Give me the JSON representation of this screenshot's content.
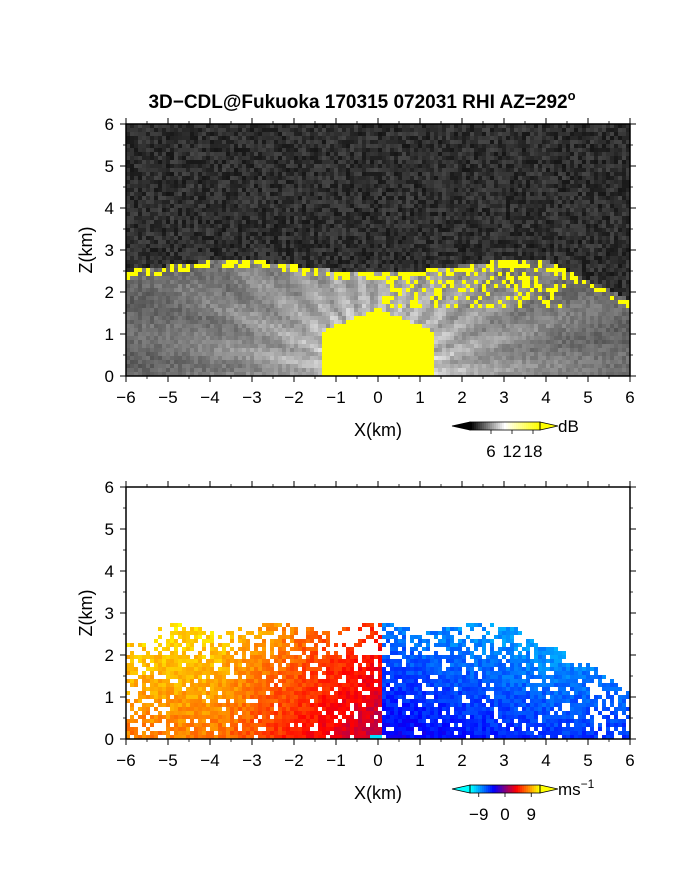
{
  "figure": {
    "title": "3D−CDL@Fukuoka 170315 072031 RHI AZ=292",
    "title_sup": "o"
  },
  "chart_data": [
    {
      "type": "heatmap",
      "variable": "backscatter intensity",
      "xlabel": "X(km)",
      "ylabel": "Z(km)",
      "xlim": [
        -6,
        6
      ],
      "ylim": [
        0,
        6
      ],
      "xticks": [
        -6,
        -5,
        -4,
        -3,
        -2,
        -1,
        0,
        1,
        2,
        3,
        4,
        5,
        6
      ],
      "yticks": [
        0,
        1,
        2,
        3,
        4,
        5,
        6
      ],
      "colorbar": {
        "unit": "dB",
        "ticks": [
          6,
          12,
          18
        ],
        "range": [
          0,
          20
        ],
        "extend": "both",
        "colors": [
          "#000000",
          "#ffffff",
          "#ffff00"
        ]
      },
      "features": {
        "noise_background": true,
        "boundary_layer_top_km": 2.6,
        "strong_signal_color": "#ffff00"
      }
    },
    {
      "type": "heatmap",
      "variable": "radial velocity",
      "xlabel": "X(km)",
      "ylabel": "Z(km)",
      "xlim": [
        -6,
        6
      ],
      "ylim": [
        0,
        6
      ],
      "xticks": [
        -6,
        -5,
        -4,
        -3,
        -2,
        -1,
        0,
        1,
        2,
        3,
        4,
        5,
        6
      ],
      "yticks": [
        0,
        1,
        2,
        3,
        4,
        5,
        6
      ],
      "colorbar": {
        "unit": "ms",
        "unit_exp": "−1",
        "ticks": [
          -9,
          0,
          9
        ],
        "tick_labels": [
          "−9",
          "0",
          "9"
        ],
        "range": [
          -12,
          12
        ],
        "extend": "both",
        "colors": [
          "#00ffff",
          "#0000ff",
          "#ff0000",
          "#ffff00"
        ]
      },
      "features": {
        "left_side_sign": "positive",
        "right_side_sign": "negative",
        "max_echo_height_km": 2.8
      }
    }
  ]
}
